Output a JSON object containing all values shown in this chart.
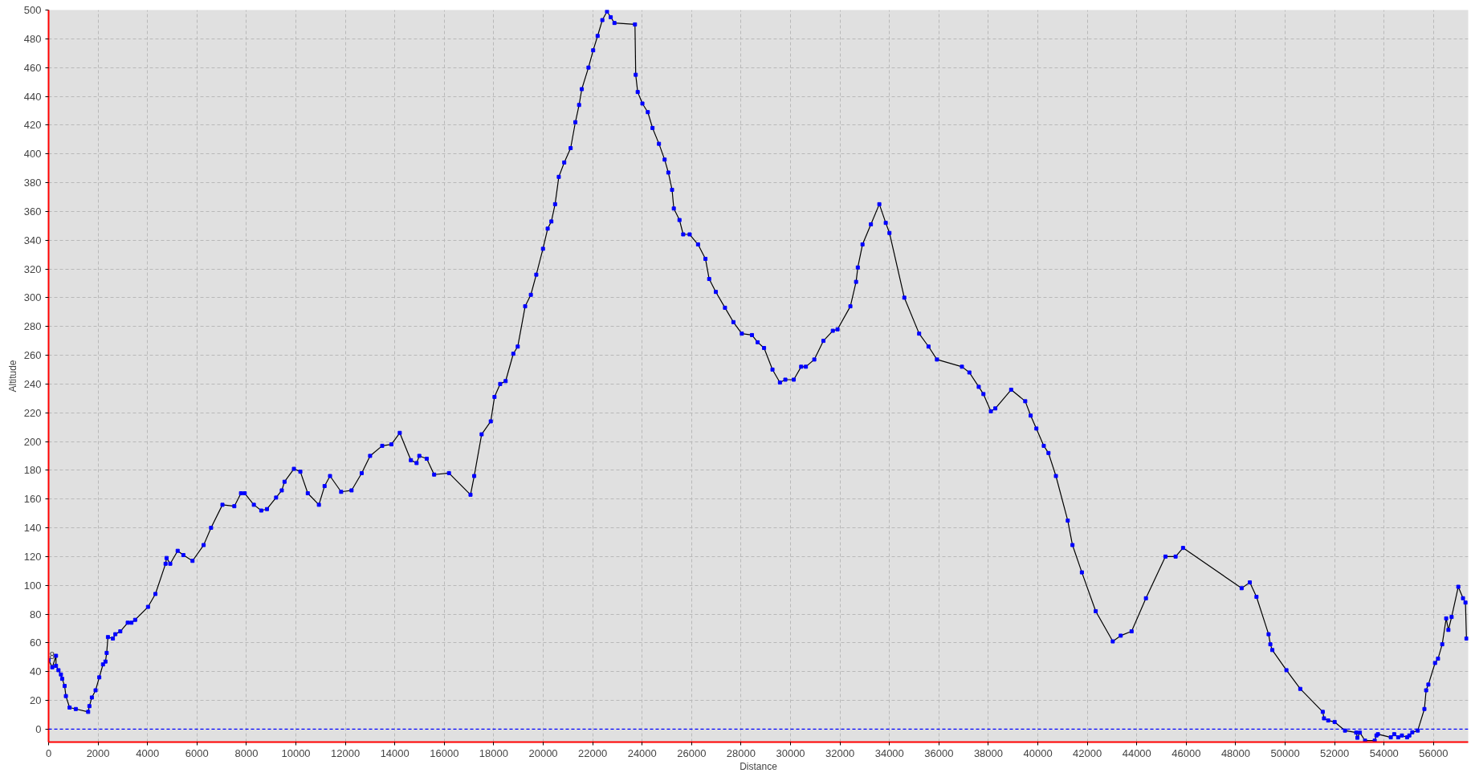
{
  "chart_data": {
    "type": "line",
    "xlabel": "Distance",
    "ylabel": "Altitude",
    "marker": "square",
    "grid": true,
    "xlim": [
      0,
      57400
    ],
    "ylim": [
      -9,
      500
    ],
    "xticks": [
      0,
      2000,
      4000,
      6000,
      8000,
      10000,
      12000,
      14000,
      16000,
      18000,
      20000,
      22000,
      24000,
      26000,
      28000,
      30000,
      32000,
      34000,
      36000,
      38000,
      40000,
      42000,
      44000,
      46000,
      48000,
      50000,
      52000,
      54000,
      56000
    ],
    "yticks": [
      0,
      20,
      40,
      60,
      80,
      100,
      120,
      140,
      160,
      180,
      200,
      220,
      240,
      260,
      280,
      300,
      320,
      340,
      360,
      380,
      400,
      420,
      440,
      460,
      480,
      500
    ],
    "ref_lines": [
      {
        "axis": "y",
        "value": 0,
        "color": "#0000ff",
        "line_style": "dashed"
      }
    ],
    "annotations": [
      "8"
    ],
    "series": [
      {
        "color": "#000000",
        "x": [
          0,
          150,
          300,
          300,
          400,
          500,
          550,
          650,
          700,
          850,
          1100,
          1600,
          1650,
          1750,
          1900,
          2050,
          2200,
          2300,
          2350,
          2400,
          2600,
          2700,
          2900,
          3200,
          3350,
          3500,
          4020,
          4320,
          4730,
          4770,
          4920,
          5220,
          5450,
          5820,
          6270,
          6570,
          7030,
          7510,
          7780,
          7930,
          8300,
          8600,
          8830,
          9200,
          9430,
          9540,
          9920,
          10180,
          10480,
          10930,
          11160,
          11380,
          11830,
          12250,
          12660,
          13000,
          13490,
          13860,
          14200,
          14650,
          14880,
          14990,
          15290,
          15590,
          16190,
          17060,
          17210,
          17510,
          17880,
          18030,
          18260,
          18480,
          18790,
          18970,
          19270,
          19500,
          19720,
          19990,
          20180,
          20330,
          20480,
          20630,
          20850,
          21110,
          21300,
          21450,
          21560,
          21830,
          22020,
          22200,
          22390,
          22580,
          22730,
          22880,
          23710,
          23740,
          23820,
          24010,
          24230,
          24420,
          24680,
          24910,
          25060,
          25210,
          25280,
          25510,
          25660,
          25920,
          26260,
          26560,
          26710,
          26980,
          27350,
          27690,
          28030,
          28440,
          28670,
          28930,
          29270,
          29570,
          29790,
          30130,
          30430,
          30620,
          30960,
          31330,
          31710,
          31900,
          32420,
          32650,
          32720,
          32910,
          33250,
          33590,
          33850,
          34000,
          34600,
          35200,
          35580,
          35920,
          36930,
          37230,
          37610,
          37800,
          38100,
          38280,
          38920,
          39490,
          39710,
          39940,
          40240,
          40430,
          40730,
          41210,
          41400,
          41780,
          42340,
          43030,
          43350,
          43790,
          44370,
          45160,
          45570,
          45870,
          48240,
          48570,
          48840,
          49330,
          49400,
          49480,
          50050,
          50610,
          51520,
          51570,
          51740,
          52000,
          52420,
          52870,
          52920,
          53020,
          53230,
          53620,
          53690,
          53750,
          54270,
          54410,
          54570,
          54720,
          54930,
          55020,
          55140,
          55360,
          55630,
          55700,
          55790,
          56060,
          56180,
          56350,
          56510,
          56600,
          56730,
          57000,
          57190,
          57290,
          57330
        ],
        "values": [
          48,
          43,
          51,
          44,
          41,
          38,
          35,
          30,
          23,
          15,
          14,
          12,
          16,
          22,
          27,
          36,
          45,
          47,
          53,
          64,
          63,
          66,
          68,
          74,
          74,
          76,
          85,
          94,
          115,
          119,
          115,
          124,
          121,
          117,
          128,
          140,
          156,
          155,
          164,
          164,
          156,
          152,
          153,
          161,
          166,
          172,
          181,
          179,
          164,
          156,
          169,
          176,
          165,
          166,
          178,
          190,
          197,
          198,
          206,
          187,
          185,
          190,
          188,
          177,
          178,
          163,
          176,
          205,
          214,
          231,
          240,
          242,
          261,
          266,
          294,
          302,
          316,
          334,
          348,
          353,
          365,
          384,
          394,
          404,
          422,
          434,
          445,
          460,
          472,
          482,
          493,
          499,
          495,
          491,
          490,
          455,
          443,
          435,
          429,
          418,
          407,
          396,
          387,
          375,
          362,
          354,
          344,
          344,
          337,
          327,
          313,
          304,
          293,
          283,
          275,
          274,
          269,
          265,
          250,
          241,
          243,
          243,
          252,
          252,
          257,
          270,
          277,
          278,
          294,
          311,
          321,
          337,
          351,
          365,
          352,
          345,
          300,
          275,
          266,
          257,
          252,
          248,
          238,
          233,
          221,
          223,
          236,
          228,
          218,
          209,
          197,
          192,
          176,
          145,
          128,
          109,
          82,
          61,
          65,
          68,
          91,
          120,
          120,
          126,
          98,
          102,
          92,
          66,
          59,
          55,
          41,
          28,
          12,
          7.5,
          6,
          5,
          -1,
          -2.4,
          -6,
          -2.4,
          -8,
          -8,
          -4.4,
          -3.5,
          -5.7,
          -3.5,
          -5.7,
          -4.4,
          -5.7,
          -4.4,
          -2.2,
          -1,
          14,
          27,
          31,
          46,
          49,
          59,
          77,
          69,
          78,
          99,
          91,
          88,
          63
        ]
      }
    ]
  }
}
